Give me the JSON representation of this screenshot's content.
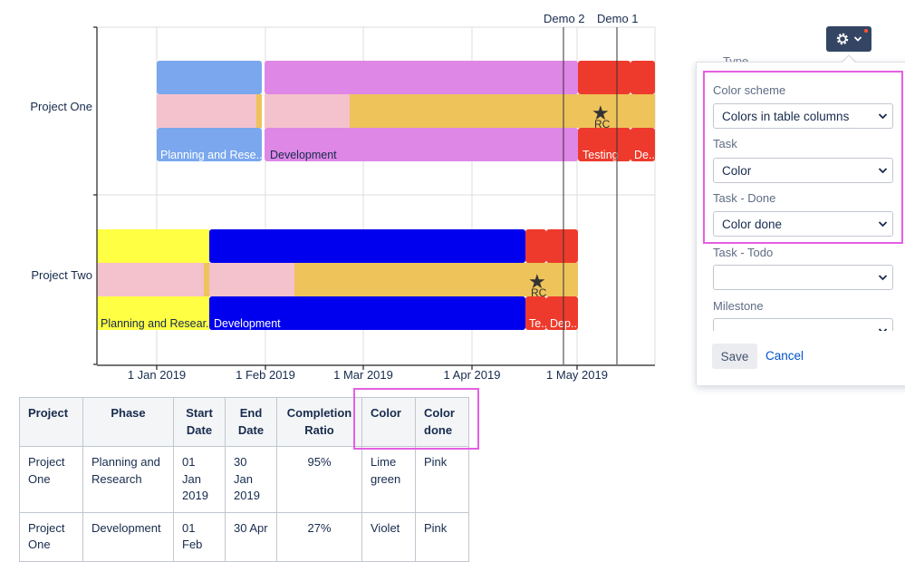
{
  "gantt": {
    "rows": [
      {
        "label": "Project One"
      },
      {
        "label": "Project Two"
      }
    ],
    "ticks": [
      "1 Jan 2019",
      "1 Feb 2019",
      "1 Mar 2019",
      "1 Apr 2019",
      "1 May 2019"
    ],
    "markers": [
      "Demo 2",
      "Demo 1"
    ],
    "bar_labels": {
      "p1_planning": "Planning and Rese...",
      "p1_development": "Development",
      "p1_testing": "Testing",
      "p1_deploy": "De...",
      "p2_planning": "Planning and Resear...",
      "p2_development": "Development",
      "p2_testing": "Te...",
      "p2_deploy": "Dep..."
    },
    "milestone_label": "RC",
    "colors": {
      "blue_light": "#7aa7ee",
      "violet": "#de87e6",
      "red": "#ee3a2c",
      "pink": "#f4c2cc",
      "amber": "#eec35a",
      "yellow": "#ffff44",
      "blue": "#0000ee"
    }
  },
  "settings": {
    "type_label": "Type",
    "fields": [
      {
        "label": "Color scheme",
        "value": "Colors in table columns"
      },
      {
        "label": "Task",
        "value": "Color"
      },
      {
        "label": "Task - Done",
        "value": "Color done"
      },
      {
        "label": "Task - Todo",
        "value": ""
      },
      {
        "label": "Milestone",
        "value": ""
      }
    ],
    "save_label": "Save",
    "cancel_label": "Cancel"
  },
  "table": {
    "headers": [
      "Project",
      "Phase",
      "Start Date",
      "End Date",
      "Completion Ratio",
      "Color",
      "Color done"
    ],
    "rows": [
      [
        "Project One",
        "Planning and Research",
        "01 Jan 2019",
        "30 Jan 2019",
        "95%",
        "Lime green",
        "Pink"
      ],
      [
        "Project One",
        "Development",
        "01 Feb",
        "30 Apr",
        "27%",
        "Violet",
        "Pink"
      ]
    ]
  }
}
